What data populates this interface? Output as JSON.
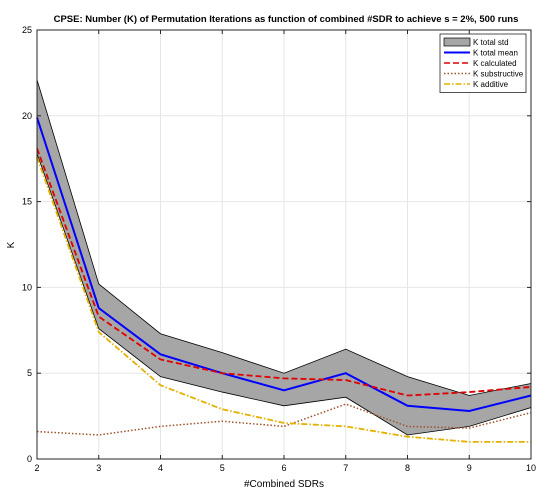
{
  "chart_data": {
    "type": "line",
    "title": "CPSE:  Number (K) of  Permutation Iterations as function of combined #SDR to achieve s = 2%, 500 runs",
    "xlabel": "#Combined SDRs",
    "ylabel": "K",
    "xlim": [
      2,
      10
    ],
    "ylim": [
      0,
      25
    ],
    "xticks": [
      2,
      3,
      4,
      5,
      6,
      7,
      8,
      9,
      10
    ],
    "yticks": [
      0,
      5,
      10,
      15,
      20,
      25
    ],
    "grid": true,
    "legend_position": "top-right",
    "x": [
      2,
      3,
      4,
      5,
      6,
      7,
      8,
      9,
      10
    ],
    "band": {
      "name": "K total std",
      "color": "#a6a6a6",
      "upper": [
        22.1,
        10.2,
        7.3,
        6.2,
        5.0,
        6.4,
        4.8,
        3.7,
        4.4
      ],
      "lower": [
        17.8,
        7.6,
        4.8,
        3.9,
        3.1,
        3.6,
        1.4,
        1.9,
        3.0
      ]
    },
    "series": [
      {
        "name": "K total mean",
        "color": "#0000ff",
        "dash": "solid",
        "values": [
          19.9,
          8.8,
          6.1,
          5.0,
          4.0,
          5.0,
          3.1,
          2.8,
          3.7
        ]
      },
      {
        "name": "K calculated",
        "color": "#e00000",
        "dash": "dashed",
        "values": [
          18.1,
          8.3,
          5.8,
          5.0,
          4.7,
          4.6,
          3.7,
          3.9,
          4.2
        ]
      },
      {
        "name": "K substructive",
        "color": "#a0522d",
        "dash": "dotted",
        "values": [
          1.6,
          1.4,
          1.9,
          2.2,
          1.9,
          3.2,
          1.9,
          1.8,
          2.7
        ]
      },
      {
        "name": "K additive",
        "color": "#e3b100",
        "dash": "dashdot",
        "values": [
          17.6,
          7.4,
          4.3,
          2.9,
          2.1,
          1.9,
          1.3,
          1.0,
          1.0
        ]
      }
    ]
  }
}
